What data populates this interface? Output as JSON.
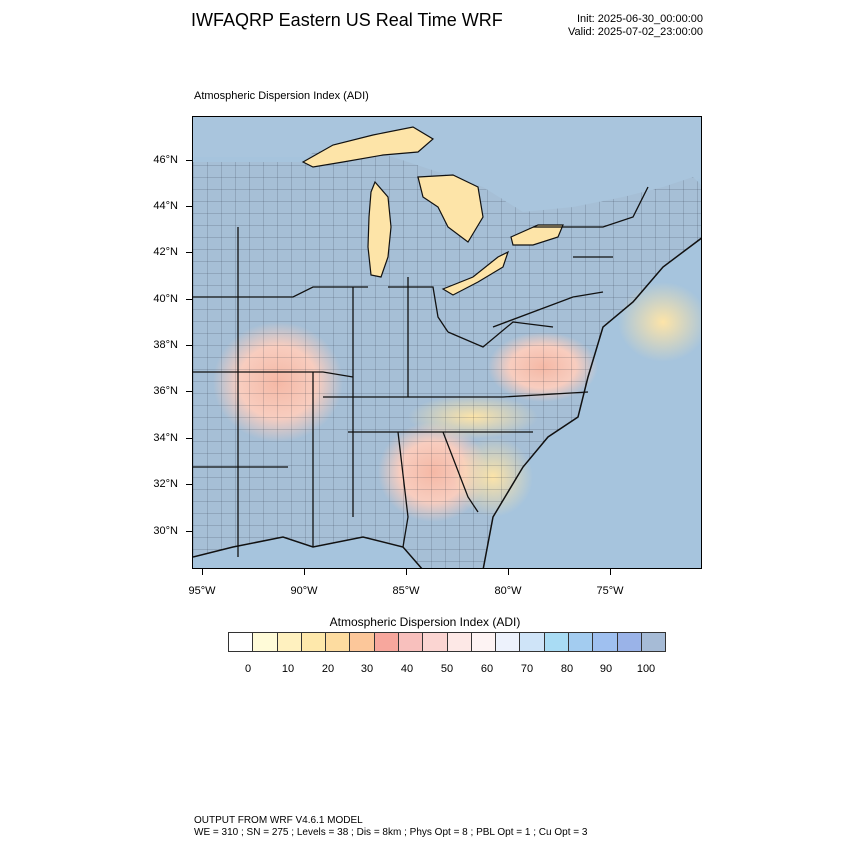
{
  "header": {
    "title": "IWFAQRP Eastern US Real Time WRF",
    "init": "Init: 2025-06-30_00:00:00",
    "valid": "Valid: 2025-07-02_23:00:00"
  },
  "map": {
    "subtitle": "Atmospheric Dispersion Index   (ADI)",
    "lat_labels": [
      "46°N",
      "44°N",
      "42°N",
      "40°N",
      "38°N",
      "36°N",
      "34°N",
      "32°N",
      "30°N"
    ],
    "lon_labels": [
      "95°W",
      "90°W",
      "85°W",
      "80°W",
      "75°W"
    ],
    "colors": {
      "low": "#fde4a8",
      "mid": "#f5c3b4",
      "high": "#a6c4dd",
      "water": "#a6c4dd",
      "boundary": "#111111"
    }
  },
  "legend": {
    "title": "Atmospheric Dispersion Index  (ADI)",
    "labels": [
      "0",
      "10",
      "20",
      "30",
      "40",
      "50",
      "60",
      "70",
      "80",
      "90",
      "100"
    ],
    "colors": [
      "#ffffff",
      "#fffbd8",
      "#fff1bf",
      "#fee8ab",
      "#fddca0",
      "#fcc79a",
      "#f7a79d",
      "#f8c0bd",
      "#fbd5d2",
      "#fde8e6",
      "#fdf3f3",
      "#edf2fc",
      "#cfe4f8",
      "#a9dcf4",
      "#a3ccf0",
      "#9fc0f0",
      "#9ab3e8",
      "#a6bbd6"
    ]
  },
  "footer": {
    "line1": "OUTPUT FROM WRF V4.6.1 MODEL",
    "line2": "WE = 310 ; SN = 275 ; Levels = 38 ; Dis = 8km ; Phys Opt = 8 ; PBL Opt = 1 ; Cu Opt = 3"
  }
}
